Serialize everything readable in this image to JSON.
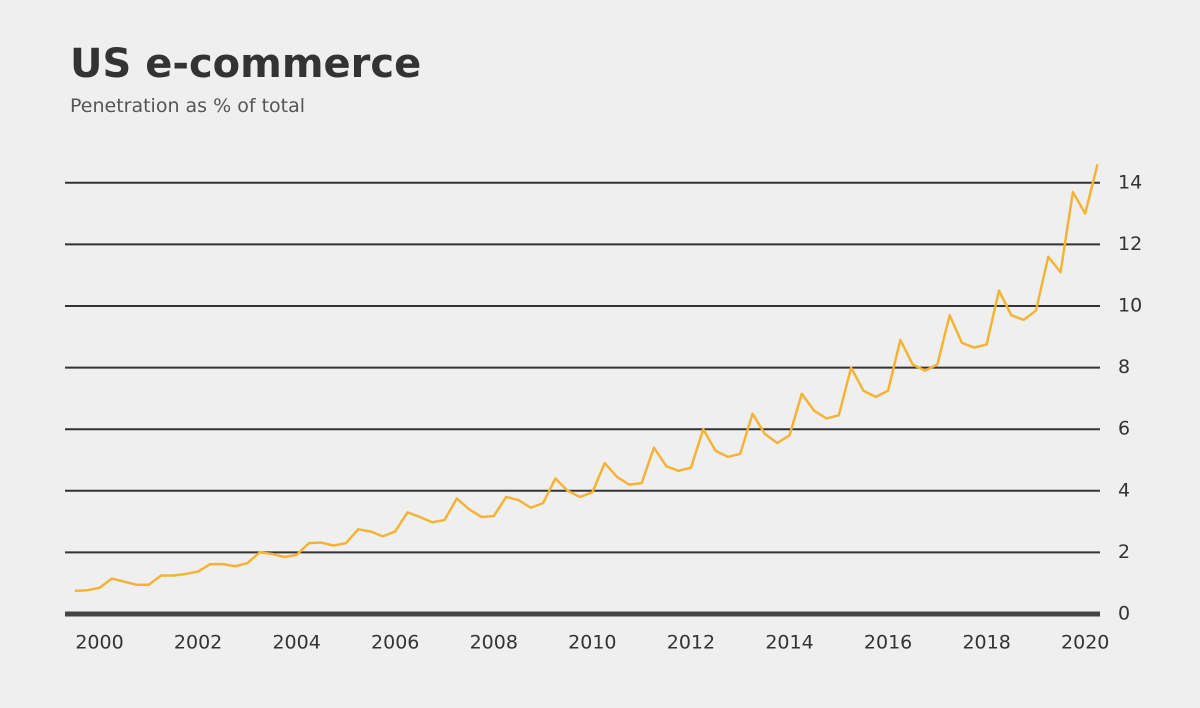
{
  "chart_data": {
    "type": "line",
    "title": "US e-commerce",
    "subtitle": "Penetration as % of total",
    "x": [
      1999.5,
      1999.75,
      2000,
      2000.25,
      2000.5,
      2000.75,
      2001,
      2001.25,
      2001.5,
      2001.75,
      2002,
      2002.25,
      2002.5,
      2002.75,
      2003,
      2003.25,
      2003.5,
      2003.75,
      2004,
      2004.25,
      2004.5,
      2004.75,
      2005,
      2005.25,
      2005.5,
      2005.75,
      2006,
      2006.25,
      2006.5,
      2006.75,
      2007,
      2007.25,
      2007.5,
      2007.75,
      2008,
      2008.25,
      2008.5,
      2008.75,
      2009,
      2009.25,
      2009.5,
      2009.75,
      2010,
      2010.25,
      2010.5,
      2010.75,
      2011,
      2011.25,
      2011.5,
      2011.75,
      2012,
      2012.25,
      2012.5,
      2012.75,
      2013,
      2013.25,
      2013.5,
      2013.75,
      2014,
      2014.25,
      2014.5,
      2014.75,
      2015,
      2015.25,
      2015.5,
      2015.75,
      2016,
      2016.25,
      2016.5,
      2016.75,
      2017,
      2017.25,
      2017.5,
      2017.75,
      2018,
      2018.25,
      2018.5,
      2018.75,
      2019,
      2019.25,
      2019.5,
      2019.75,
      2020,
      2020.25
    ],
    "series": [
      {
        "name": "Penetration",
        "color": "#f5b335",
        "values": [
          0.75,
          0.77,
          0.85,
          1.15,
          1.05,
          0.95,
          0.95,
          1.25,
          1.25,
          1.3,
          1.38,
          1.62,
          1.62,
          1.55,
          1.65,
          2.0,
          1.95,
          1.85,
          1.92,
          2.3,
          2.32,
          2.22,
          2.3,
          2.75,
          2.68,
          2.52,
          2.68,
          3.3,
          3.15,
          2.98,
          3.05,
          3.75,
          3.4,
          3.15,
          3.18,
          3.8,
          3.7,
          3.45,
          3.6,
          4.4,
          4.0,
          3.8,
          3.95,
          4.9,
          4.45,
          4.2,
          4.25,
          5.4,
          4.8,
          4.65,
          4.75,
          6.0,
          5.3,
          5.1,
          5.2,
          6.5,
          5.85,
          5.55,
          5.8,
          7.15,
          6.6,
          6.35,
          6.45,
          8.0,
          7.25,
          7.05,
          7.25,
          8.9,
          8.1,
          7.9,
          8.1,
          9.7,
          8.8,
          8.65,
          8.75,
          10.5,
          9.7,
          9.55,
          9.85,
          11.6,
          11.1,
          13.7,
          13.0,
          14.6
        ]
      }
    ],
    "xlim": [
      1999.3,
      2020.3
    ],
    "xticks": [
      2000,
      2002,
      2004,
      2006,
      2008,
      2010,
      2012,
      2014,
      2016,
      2018,
      2020
    ],
    "ylim": [
      0,
      15
    ],
    "yticks": [
      0,
      2,
      4,
      6,
      8,
      10,
      12,
      14
    ],
    "grid": true
  }
}
